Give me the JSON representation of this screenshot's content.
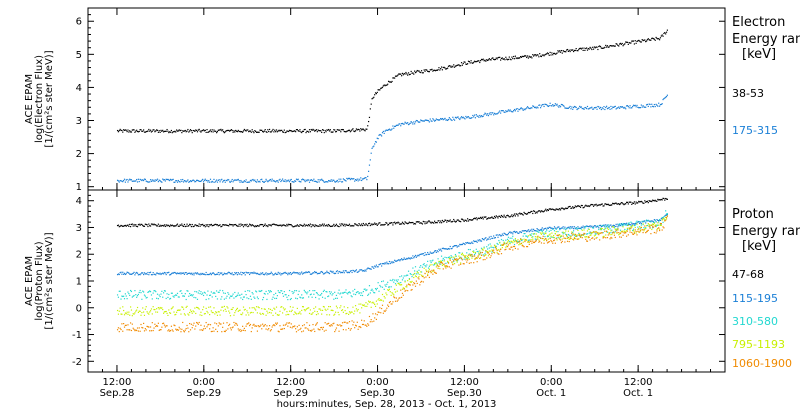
{
  "chart_data": [
    {
      "type": "scatter",
      "title": "",
      "ylabel_lines": [
        "ACE EPAM",
        "log(Electron Flux)",
        "[1/(cm²s ster MeV)]"
      ],
      "ylim": [
        0.9,
        6.4
      ],
      "yticks": [
        1,
        2,
        3,
        4,
        5,
        6
      ],
      "legend": {
        "title_lines": [
          "Electron",
          "Energy ranges",
          "[keV]"
        ]
      },
      "colors": [
        "#000000",
        "#1a7fd6"
      ],
      "series": [
        {
          "name": "38-53",
          "color": "#000000",
          "x": [
            -12,
            -6,
            0,
            6,
            12,
            18,
            22.5,
            23.2,
            24,
            25,
            27,
            30,
            33,
            36,
            39,
            42,
            45,
            48,
            51,
            54,
            57,
            60,
            63,
            64
          ],
          "y": [
            2.7,
            2.7,
            2.7,
            2.7,
            2.7,
            2.7,
            2.75,
            3.7,
            3.9,
            4.1,
            4.4,
            4.5,
            4.6,
            4.75,
            4.85,
            4.9,
            4.95,
            5.05,
            5.15,
            5.2,
            5.3,
            5.4,
            5.5,
            5.75
          ]
        },
        {
          "name": "175-315",
          "color": "#1a7fd6",
          "x": [
            -12,
            -6,
            0,
            6,
            12,
            18,
            22.5,
            23.2,
            24,
            25,
            27,
            30,
            33,
            36,
            39,
            42,
            45,
            48,
            51,
            54,
            57,
            60,
            63,
            64
          ],
          "y": [
            1.2,
            1.2,
            1.2,
            1.2,
            1.2,
            1.2,
            1.25,
            2.2,
            2.5,
            2.7,
            2.9,
            3.0,
            3.05,
            3.1,
            3.2,
            3.3,
            3.4,
            3.5,
            3.4,
            3.4,
            3.4,
            3.45,
            3.5,
            3.8
          ]
        }
      ]
    },
    {
      "type": "scatter",
      "title": "",
      "ylabel_lines": [
        "ACE EPAM",
        "log(Proton Flux)",
        "[1/(cm²s ster MeV)]"
      ],
      "ylim": [
        -2.4,
        4.4
      ],
      "yticks": [
        -2,
        -1,
        0,
        1,
        2,
        3,
        4
      ],
      "legend": {
        "title_lines": [
          "Proton",
          "Energy ranges",
          "[keV]"
        ]
      },
      "colors": [
        "#000000",
        "#1a7fd6",
        "#22d8d0",
        "#c8f000",
        "#f08a00"
      ],
      "series": [
        {
          "name": "47-68",
          "color": "#000000",
          "x": [
            -12,
            -6,
            0,
            6,
            12,
            18,
            24,
            30,
            36,
            42,
            48,
            54,
            60,
            64
          ],
          "y": [
            3.1,
            3.1,
            3.1,
            3.1,
            3.1,
            3.1,
            3.15,
            3.2,
            3.3,
            3.45,
            3.7,
            3.85,
            3.95,
            4.1
          ]
        },
        {
          "name": "115-195",
          "color": "#1a7fd6",
          "x": [
            -12,
            -6,
            0,
            6,
            12,
            18,
            22,
            24,
            27,
            30,
            33,
            36,
            39,
            42,
            45,
            48,
            51,
            54,
            57,
            60,
            63,
            64
          ],
          "y": [
            1.3,
            1.3,
            1.3,
            1.3,
            1.3,
            1.35,
            1.4,
            1.6,
            1.8,
            2.0,
            2.2,
            2.4,
            2.6,
            2.8,
            2.9,
            3.0,
            3.0,
            3.05,
            3.1,
            3.2,
            3.3,
            3.5
          ]
        },
        {
          "name": "310-580",
          "color": "#22d8d0",
          "x": [
            -12,
            -6,
            0,
            6,
            12,
            18,
            22,
            24,
            27,
            30,
            33,
            36,
            39,
            42,
            45,
            48,
            51,
            54,
            57,
            60,
            63,
            64
          ],
          "y": [
            0.5,
            0.5,
            0.5,
            0.5,
            0.5,
            0.5,
            0.6,
            0.8,
            1.1,
            1.5,
            1.8,
            2.0,
            2.2,
            2.5,
            2.7,
            2.8,
            2.85,
            2.9,
            3.0,
            3.1,
            3.2,
            3.6
          ]
        },
        {
          "name": "795-1193",
          "color": "#c8f000",
          "x": [
            -12,
            -6,
            0,
            6,
            12,
            18,
            22,
            24,
            27,
            30,
            33,
            36,
            39,
            42,
            45,
            48,
            51,
            54,
            57,
            60,
            63,
            64
          ],
          "y": [
            -0.1,
            -0.1,
            -0.1,
            -0.1,
            -0.1,
            -0.1,
            0.0,
            0.3,
            0.8,
            1.3,
            1.7,
            1.9,
            2.1,
            2.4,
            2.6,
            2.7,
            2.75,
            2.8,
            2.9,
            3.0,
            3.1,
            3.5
          ]
        },
        {
          "name": "1060-1900",
          "color": "#f08a00",
          "x": [
            -12,
            -6,
            0,
            6,
            12,
            18,
            22,
            24,
            27,
            30,
            33,
            36,
            39,
            42,
            45,
            48,
            51,
            54,
            57,
            60,
            63,
            64
          ],
          "y": [
            -0.7,
            -0.7,
            -0.7,
            -0.7,
            -0.7,
            -0.7,
            -0.6,
            -0.2,
            0.5,
            1.1,
            1.6,
            1.8,
            2.0,
            2.3,
            2.5,
            2.6,
            2.65,
            2.7,
            2.8,
            2.9,
            3.0,
            3.3
          ]
        }
      ]
    }
  ],
  "x_axis": {
    "units": "hours since 0:00 Sep.29, 2013",
    "range": [
      -16,
      72
    ],
    "ticks": [
      {
        "x": -12,
        "line1": "12:00",
        "line2": "Sep.28"
      },
      {
        "x": 0,
        "line1": "0:00",
        "line2": "Sep.29"
      },
      {
        "x": 12,
        "line1": "12:00",
        "line2": "Sep.29"
      },
      {
        "x": 24,
        "line1": "0:00",
        "line2": "Sep.30"
      },
      {
        "x": 36,
        "line1": "12:00",
        "line2": "Sep.30"
      },
      {
        "x": 48,
        "line1": "0:00",
        "line2": "Oct. 1"
      },
      {
        "x": 60,
        "line1": "12:00",
        "line2": "Oct. 1"
      }
    ],
    "label": "hours:minutes, Sep. 28, 2013 - Oct. 1, 2013"
  }
}
